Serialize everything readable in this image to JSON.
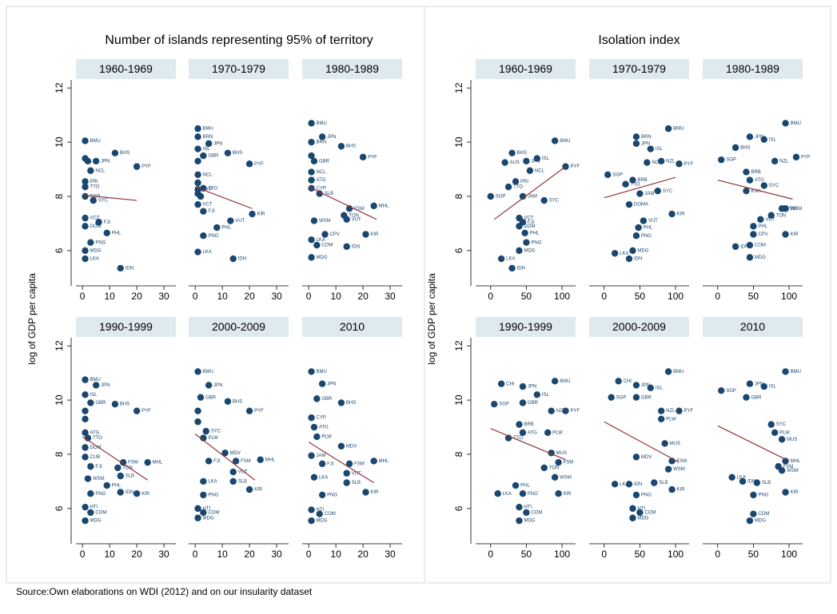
{
  "chart_data": [
    {
      "type": "scatter",
      "title": "Number of islands representing 95% of territory",
      "ylabel": "log of GDP per capita",
      "xlim": [
        -2.4,
        34.4
      ],
      "xticks": [
        0,
        10,
        20,
        30
      ],
      "ylim": [
        4.7,
        12.3
      ],
      "yticks": [
        6,
        8,
        10,
        12
      ],
      "color": "#1a476f",
      "fit_color": "#90353b",
      "panels": [
        {
          "title": "1960-1969",
          "labels": [
            "BMU",
            "BHS",
            "JPN",
            "",
            "",
            "NCL",
            "PYF",
            "PRI",
            "TTO",
            "SGP",
            "SYC",
            "VCT",
            "FJI",
            "DOM",
            "PHL",
            "PNG",
            "MDG",
            "LKA",
            "IDN"
          ],
          "x": [
            1,
            12,
            5,
            1,
            2,
            3,
            20,
            1,
            1,
            1,
            4,
            1,
            6,
            1,
            9,
            3,
            1,
            1,
            14
          ],
          "y": [
            10.05,
            9.6,
            9.3,
            9.4,
            9.3,
            8.95,
            9.1,
            8.55,
            8.35,
            8.0,
            7.85,
            7.2,
            7.05,
            6.9,
            6.65,
            6.3,
            6.0,
            5.7,
            5.35
          ],
          "fit": {
            "x": [
              0,
              20
            ],
            "y": [
              8.05,
              7.85
            ]
          }
        },
        {
          "title": "1970-1979",
          "labels": [
            "BMU",
            "BRN",
            "JPN",
            "ISL",
            "GBR",
            "BHS",
            "PYF",
            "",
            "NCL",
            "",
            "CYP",
            "TTO",
            "",
            "",
            "VCT",
            "FJI",
            "VUT",
            "KIR",
            "PHL",
            "PNG",
            "LKA",
            "IDN"
          ],
          "x": [
            1,
            1,
            5,
            1,
            3,
            12,
            20,
            1,
            1,
            1,
            1,
            3,
            1,
            2,
            1,
            3,
            13,
            21,
            8,
            3,
            1,
            14
          ],
          "y": [
            10.5,
            10.2,
            9.95,
            9.75,
            9.5,
            9.6,
            9.2,
            9.3,
            8.8,
            8.5,
            8.25,
            8.3,
            8.1,
            8.0,
            7.7,
            7.45,
            7.1,
            7.35,
            6.85,
            6.55,
            5.95,
            5.7
          ],
          "fit": {
            "x": [
              0,
              21
            ],
            "y": [
              8.35,
              7.55
            ]
          }
        },
        {
          "title": "1980-1989",
          "labels": [
            "BMU",
            "JPN",
            "BRN",
            "BHS",
            "PYF",
            "",
            "GBR",
            "NCL",
            "ATG",
            "CYP",
            "SLB",
            "FSM",
            "MHL",
            "TON",
            "VUT",
            "WSM",
            "CPV",
            "KIR",
            "IDN",
            "COM",
            "MDG",
            "LKA"
          ],
          "x": [
            1,
            5,
            1,
            12,
            20,
            1,
            2,
            1,
            1,
            1,
            4,
            15,
            24,
            13,
            14,
            2,
            6,
            21,
            14,
            3,
            1,
            1
          ],
          "y": [
            10.7,
            10.2,
            10.0,
            9.85,
            9.45,
            9.5,
            9.3,
            8.9,
            8.6,
            8.3,
            8.1,
            7.55,
            7.65,
            7.3,
            7.15,
            7.1,
            6.6,
            6.6,
            6.15,
            6.2,
            5.75,
            6.4
          ],
          "fit": {
            "x": [
              0,
              25
            ],
            "y": [
              8.35,
              7.15
            ]
          }
        },
        {
          "title": "1990-1999",
          "labels": [
            "BMU",
            "JPN",
            "ISL",
            "GBR",
            "BHS",
            "PYF",
            "",
            "",
            "ATG",
            "TTO",
            "DOM",
            "CUB",
            "FSM",
            "MHL",
            "FJI",
            "TON",
            "SLB",
            "WSM",
            "PHL",
            "PNG",
            "IDN",
            "KIR",
            "HTI",
            "COM",
            "MDG"
          ],
          "x": [
            1,
            5,
            1,
            3,
            12,
            20,
            1,
            1,
            1,
            2,
            1,
            1,
            15,
            24,
            3,
            13,
            14,
            2,
            9,
            3,
            14,
            20,
            1,
            3,
            1
          ],
          "y": [
            10.75,
            10.55,
            10.2,
            9.9,
            9.85,
            9.6,
            9.6,
            9.3,
            8.8,
            8.6,
            8.25,
            7.9,
            7.7,
            7.7,
            7.55,
            7.5,
            7.2,
            7.1,
            6.85,
            6.55,
            6.6,
            6.55,
            6.05,
            5.85,
            5.55
          ],
          "fit": {
            "x": [
              0,
              24
            ],
            "y": [
              8.65,
              7.05
            ]
          }
        },
        {
          "title": "2000-2009",
          "labels": [
            "BMU",
            "JPN",
            "GBR",
            "BHS",
            "PYF",
            "",
            "",
            "SYC",
            "PLW",
            "MDV",
            "FSM",
            "MHL",
            "FJI",
            "VUT",
            "SLB",
            "KIR",
            "LKA",
            "PNG",
            "HTI",
            "COM",
            "MDG"
          ],
          "x": [
            1,
            5,
            2,
            12,
            20,
            1,
            1,
            4,
            3,
            11,
            15,
            24,
            5,
            14,
            14,
            20,
            3,
            3,
            1,
            3,
            1
          ],
          "y": [
            11.05,
            10.55,
            10.1,
            9.95,
            9.6,
            9.6,
            9.2,
            8.85,
            8.6,
            8.05,
            7.75,
            7.8,
            7.75,
            7.35,
            7.0,
            6.7,
            7.0,
            6.5,
            6.0,
            5.85,
            5.65
          ],
          "fit": {
            "x": [
              0,
              22
            ],
            "y": [
              8.75,
              7.05
            ]
          }
        },
        {
          "title": "2010",
          "labels": [
            "BMU",
            "JPN",
            "GBR",
            "BHS",
            "CYP",
            "ATG",
            "PLW",
            "MDV",
            "JAM",
            "FSM",
            "MHL",
            "FJI",
            "VUT",
            "SLB",
            "LKA",
            "KIR",
            "PNG",
            "HTI",
            "COM",
            "MDG"
          ],
          "x": [
            1,
            5,
            3,
            12,
            1,
            2,
            3,
            12,
            1,
            15,
            24,
            5,
            14,
            14,
            2,
            21,
            5,
            1,
            4,
            1
          ],
          "y": [
            11.05,
            10.6,
            10.05,
            9.9,
            9.35,
            9.0,
            8.65,
            8.3,
            7.95,
            7.65,
            7.75,
            7.65,
            7.3,
            6.95,
            7.15,
            6.6,
            6.5,
            5.95,
            5.8,
            5.55
          ],
          "fit": {
            "x": [
              0,
              24
            ],
            "y": [
              8.45,
              6.95
            ]
          }
        }
      ]
    },
    {
      "type": "scatter",
      "title": "Isolation index",
      "ylabel": "log of GDP per capita",
      "xlim": [
        -21,
        119
      ],
      "xticks": [
        0,
        50,
        100
      ],
      "ylim": [
        4.7,
        12.3
      ],
      "yticks": [
        6,
        8,
        10,
        12
      ],
      "color": "#1a476f",
      "fit_color": "#90353b",
      "panels": [
        {
          "title": "1960-1969",
          "labels": [
            "BMU",
            "BHS",
            "JPN",
            "ISL",
            "AUS",
            "NCL",
            "PYF",
            "PRI",
            "TTO",
            "SGP",
            "JAM",
            "SYC",
            "VCT",
            "FJI",
            "DOM",
            "PHL",
            "PNG",
            "MDG",
            "LKA",
            "IDN"
          ],
          "x": [
            90,
            30,
            50,
            65,
            20,
            55,
            105,
            35,
            25,
            0,
            45,
            75,
            40,
            45,
            40,
            48,
            50,
            40,
            15,
            30
          ],
          "y": [
            10.05,
            9.6,
            9.3,
            9.4,
            9.25,
            8.95,
            9.1,
            8.55,
            8.35,
            8.0,
            8.0,
            7.85,
            7.2,
            7.05,
            6.9,
            6.65,
            6.3,
            6.0,
            5.7,
            5.35
          ],
          "fit": {
            "x": [
              5,
              105
            ],
            "y": [
              7.15,
              9.1
            ]
          }
        },
        {
          "title": "1970-1979",
          "labels": [
            "BMU",
            "BRN",
            "JPN",
            "ISL",
            "NZL",
            "PYF",
            "NCL",
            "SGP",
            "BRB",
            "TTO",
            "JAM",
            "SYC",
            "DOMA",
            "VUT",
            "KIR",
            "PNG",
            "PHL",
            "MDG",
            "LKA",
            "IDN"
          ],
          "x": [
            90,
            45,
            45,
            65,
            80,
            105,
            60,
            5,
            40,
            30,
            50,
            75,
            35,
            55,
            95,
            45,
            48,
            40,
            15,
            35
          ],
          "y": [
            10.5,
            10.2,
            9.95,
            9.75,
            9.3,
            9.2,
            9.25,
            8.8,
            8.6,
            8.45,
            8.1,
            8.2,
            7.7,
            7.1,
            7.35,
            6.55,
            6.85,
            6.0,
            5.9,
            5.7
          ],
          "fit": {
            "x": [
              0,
              100
            ],
            "y": [
              7.95,
              8.7
            ]
          }
        },
        {
          "title": "1980-1989",
          "labels": [
            "BMU",
            "JPN",
            "ISL",
            "BHS",
            "PYF",
            "NZL",
            "SGP",
            "BRB",
            "ATG",
            "SYC",
            "KNA",
            "FSM",
            "WSM",
            "TON",
            "VUT",
            "PHL",
            "CPV",
            "KIR",
            "IDN",
            "COM",
            "MDG"
          ],
          "x": [
            95,
            45,
            65,
            25,
            110,
            80,
            5,
            40,
            45,
            65,
            40,
            90,
            95,
            75,
            60,
            50,
            50,
            95,
            25,
            45,
            45
          ],
          "y": [
            10.7,
            10.2,
            10.1,
            9.8,
            9.45,
            9.3,
            9.35,
            8.9,
            8.6,
            8.4,
            8.2,
            7.55,
            7.55,
            7.3,
            7.15,
            6.9,
            6.6,
            6.6,
            6.15,
            6.2,
            5.75
          ],
          "fit": {
            "x": [
              0,
              105
            ],
            "y": [
              8.6,
              7.9
            ]
          }
        },
        {
          "title": "1990-1999",
          "labels": [
            "BMU",
            "CHI",
            "JPN",
            "ISL",
            "GBR",
            "NZL",
            "PYF",
            "SGP",
            "BRB",
            "ATG",
            "PLW",
            "TTO",
            "MUS",
            "FSM",
            "TON",
            "WSM",
            "PHL",
            "LKA",
            "PNG",
            "KIR",
            "HTI",
            "COM",
            "MDG"
          ],
          "x": [
            90,
            15,
            45,
            65,
            45,
            85,
            105,
            5,
            40,
            45,
            80,
            25,
            85,
            95,
            75,
            90,
            35,
            10,
            45,
            95,
            40,
            50,
            40
          ],
          "y": [
            10.7,
            10.6,
            10.5,
            10.2,
            9.9,
            9.6,
            9.6,
            9.85,
            9.1,
            8.8,
            8.8,
            8.6,
            8.05,
            7.7,
            7.5,
            7.15,
            6.85,
            6.55,
            6.55,
            6.55,
            6.05,
            5.85,
            5.55
          ],
          "fit": {
            "x": [
              0,
              105
            ],
            "y": [
              8.95,
              7.8
            ]
          }
        },
        {
          "title": "2000-2009",
          "labels": [
            "BMU",
            "CHI",
            "JPN",
            "ISL",
            "GBR",
            "NZL",
            "PYF",
            "SGP",
            "PLW",
            "MUS",
            "FSM",
            "WSM",
            "MDV",
            "SLB",
            "LKA",
            "IDN",
            "PNG",
            "KIR",
            "HTI",
            "COM",
            "MDG"
          ],
          "x": [
            90,
            20,
            45,
            65,
            45,
            80,
            105,
            10,
            80,
            85,
            95,
            90,
            45,
            70,
            15,
            35,
            45,
            95,
            40,
            50,
            40
          ],
          "y": [
            11.05,
            10.7,
            10.55,
            10.45,
            10.1,
            9.6,
            9.6,
            10.1,
            9.3,
            8.4,
            7.75,
            7.45,
            7.9,
            6.95,
            6.9,
            6.9,
            6.5,
            6.7,
            6.0,
            5.85,
            5.65
          ],
          "fit": {
            "x": [
              0,
              105
            ],
            "y": [
              9.2,
              7.7
            ]
          }
        },
        {
          "title": "2010",
          "labels": [
            "BMU",
            "JPN",
            "ISL",
            "GBR",
            "SGP",
            "SYC",
            "PLW",
            "MUS",
            "MHL",
            "FSM",
            "WSM",
            "SLB",
            "LKA",
            "IDN",
            "KIR",
            "PNG",
            "COM",
            "MDG"
          ],
          "x": [
            95,
            45,
            65,
            40,
            5,
            75,
            80,
            90,
            95,
            85,
            90,
            55,
            20,
            35,
            95,
            50,
            50,
            45
          ],
          "y": [
            11.05,
            10.6,
            10.5,
            10.1,
            10.35,
            9.1,
            8.8,
            8.55,
            7.75,
            7.55,
            7.4,
            6.95,
            7.15,
            7.0,
            6.6,
            6.5,
            5.8,
            5.55
          ],
          "fit": {
            "x": [
              0,
              100
            ],
            "y": [
              9.05,
              7.75
            ]
          }
        }
      ]
    }
  ],
  "source": "Source:Own elaborations on WDI (2012) and on our insularity dataset"
}
